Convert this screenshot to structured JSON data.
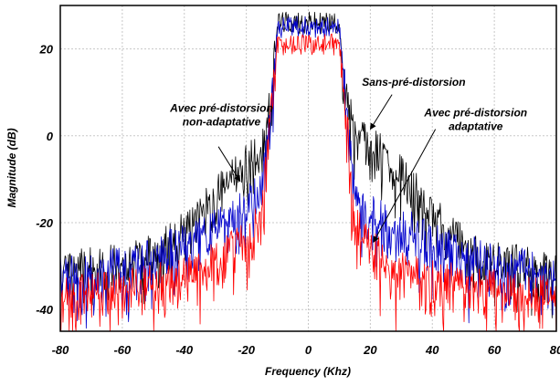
{
  "colors": {
    "background": "#ffffff",
    "grid": "#c8c8c8",
    "frame": "#000000",
    "annotation_text": "#000000"
  },
  "chart_data": {
    "type": "line",
    "title": "",
    "xlabel": "Frequency (Khz)",
    "ylabel": "Magnitude (dB)",
    "xlim": [
      -80,
      80
    ],
    "ylim": [
      -45,
      30
    ],
    "xticks": [
      -80,
      -60,
      -40,
      -20,
      0,
      20,
      40,
      60,
      80
    ],
    "yticks": [
      -40,
      -20,
      0,
      20
    ],
    "xtick_labels": [
      "-80",
      "-60",
      "-40",
      "-20",
      "0",
      "20",
      "40",
      "60",
      "80"
    ],
    "ytick_labels": [
      "-40",
      "-20",
      "0",
      "20"
    ],
    "grid": true,
    "series": [
      {
        "name": "Sans-pré-distorsion",
        "color": "#000000",
        "x": [
          -80,
          -70,
          -60,
          -50,
          -40,
          -35,
          -30,
          -25,
          -20,
          -15,
          -12,
          -10,
          -5,
          0,
          5,
          10,
          12,
          15,
          20,
          25,
          30,
          35,
          40,
          50,
          60,
          70,
          80
        ],
        "y": [
          -30,
          -29,
          -28,
          -26,
          -21,
          -17,
          -13,
          -8,
          -5,
          -3,
          10,
          26,
          26,
          26,
          26,
          26,
          10,
          2,
          -1,
          -4,
          -8,
          -12,
          -17,
          -24,
          -27,
          -29,
          -31
        ]
      },
      {
        "name": "Avec pré-distorsion non-adaptative",
        "color": "#0000cc",
        "x": [
          -80,
          -70,
          -60,
          -50,
          -40,
          -30,
          -25,
          -20,
          -15,
          -12,
          -10,
          -5,
          0,
          5,
          10,
          12,
          15,
          20,
          25,
          30,
          40,
          50,
          60,
          70,
          80
        ],
        "y": [
          -31,
          -30,
          -29,
          -27,
          -23,
          -20,
          -18,
          -15,
          -11,
          10,
          25,
          25,
          25,
          25,
          25,
          10,
          -13,
          -17,
          -19,
          -20,
          -23,
          -26,
          -28,
          -29,
          -32
        ]
      },
      {
        "name": "Avec pré-distorsion adaptative",
        "color": "#ff0000",
        "x": [
          -80,
          -70,
          -60,
          -50,
          -40,
          -30,
          -25,
          -20,
          -15,
          -12,
          -10,
          -5,
          0,
          5,
          10,
          12,
          15,
          20,
          25,
          30,
          40,
          50,
          60,
          70,
          80
        ],
        "y": [
          -36,
          -35,
          -34,
          -33,
          -31,
          -28,
          -25,
          -23,
          -18,
          8,
          21,
          21,
          21,
          21,
          21,
          8,
          -19,
          -24,
          -27,
          -30,
          -32,
          -33,
          -34,
          -35,
          -36
        ]
      }
    ],
    "annotations": [
      {
        "id": "non-adaptative",
        "lines": [
          "Avec pré-distorsion",
          "non-adaptative"
        ],
        "text_at": [
          -28,
          5.5
        ],
        "arrow_from": [
          -29,
          -2.5
        ],
        "arrow_to": [
          -22,
          -10.5
        ]
      },
      {
        "id": "sans",
        "lines": [
          "Sans-pré-distorsion"
        ],
        "text_at": [
          34,
          11.5
        ],
        "arrow_from": [
          27,
          9.5
        ],
        "arrow_to": [
          20,
          1.5
        ]
      },
      {
        "id": "adaptative",
        "lines": [
          "Avec pré-distorsion",
          "adaptative"
        ],
        "text_at": [
          54,
          4.5
        ],
        "arrow_from": [
          41,
          1.5
        ],
        "arrow_to": [
          21,
          -24.5
        ]
      }
    ]
  }
}
